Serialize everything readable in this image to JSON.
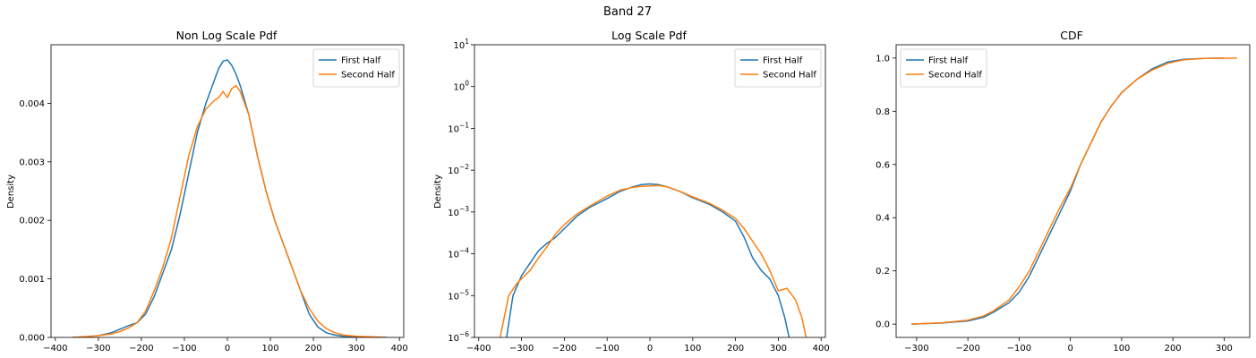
{
  "figure": {
    "suptitle": "Band 27"
  },
  "colors": {
    "first": "#1f77b4",
    "second": "#ff7f0e"
  },
  "chart_data": [
    {
      "type": "line",
      "title": "Non Log Scale Pdf",
      "xlabel": "",
      "ylabel": "Density",
      "xlim": [
        -410,
        410
      ],
      "ylim": [
        0,
        0.005
      ],
      "yscale": "linear",
      "xticks": [
        -400,
        -300,
        -200,
        -100,
        0,
        100,
        200,
        300,
        400
      ],
      "yticks": [
        0.0,
        0.001,
        0.002,
        0.003,
        0.004
      ],
      "ytick_labels": [
        "0.000",
        "0.001",
        "0.002",
        "0.003",
        "0.004"
      ],
      "legend": "top-right",
      "series": [
        {
          "name": "First Half",
          "color": "#1f77b4",
          "x": [
            -360,
            -330,
            -300,
            -270,
            -250,
            -230,
            -210,
            -190,
            -170,
            -150,
            -130,
            -110,
            -90,
            -70,
            -50,
            -30,
            -20,
            -10,
            0,
            10,
            20,
            30,
            50,
            70,
            90,
            110,
            130,
            150,
            170,
            190,
            210,
            230,
            250,
            270,
            300,
            330,
            370
          ],
          "y": [
            0.0,
            1e-05,
            3e-05,
            8e-05,
            0.00014,
            0.0002,
            0.00025,
            0.0004,
            0.0007,
            0.0011,
            0.0015,
            0.0021,
            0.0028,
            0.0035,
            0.004,
            0.0044,
            0.0046,
            0.00472,
            0.00474,
            0.00465,
            0.0045,
            0.0043,
            0.0038,
            0.0031,
            0.0025,
            0.002,
            0.0016,
            0.0012,
            0.0008,
            0.0004,
            0.00018,
            8e-05,
            4e-05,
            2e-05,
            5e-06,
            0.0,
            0.0
          ]
        },
        {
          "name": "Second Half",
          "color": "#ff7f0e",
          "x": [
            -360,
            -330,
            -300,
            -270,
            -250,
            -230,
            -210,
            -190,
            -170,
            -150,
            -130,
            -110,
            -90,
            -70,
            -50,
            -30,
            -20,
            -10,
            0,
            10,
            20,
            30,
            50,
            70,
            90,
            110,
            130,
            150,
            170,
            190,
            210,
            230,
            250,
            270,
            300,
            330,
            370
          ],
          "y": [
            0.0,
            1e-05,
            3e-05,
            6e-05,
            0.0001,
            0.00016,
            0.00025,
            0.00045,
            0.0008,
            0.0012,
            0.0017,
            0.0024,
            0.0031,
            0.0036,
            0.0039,
            0.00405,
            0.0041,
            0.0042,
            0.0041,
            0.00425,
            0.0043,
            0.0042,
            0.0038,
            0.0031,
            0.0025,
            0.002,
            0.0016,
            0.0012,
            0.0008,
            0.0005,
            0.00028,
            0.00015,
            8e-05,
            4e-05,
            2e-05,
            1e-05,
            0.0
          ]
        }
      ]
    },
    {
      "type": "line",
      "title": "Log Scale Pdf",
      "xlabel": "",
      "ylabel": "Density",
      "xlim": [
        -410,
        410
      ],
      "ylim": [
        1e-06,
        10
      ],
      "yscale": "log",
      "xticks": [
        -400,
        -300,
        -200,
        -100,
        0,
        100,
        200,
        300,
        400
      ],
      "yticks": [
        1e-06,
        1e-05,
        0.0001,
        0.001,
        0.01,
        0.1,
        1,
        10
      ],
      "ytick_labels": [
        "10|−6",
        "10|−5",
        "10|−4",
        "10|−3",
        "10|−2",
        "10|−1",
        "10|0",
        "10|1"
      ],
      "legend": "top-right",
      "series": [
        {
          "name": "First Half",
          "color": "#1f77b4",
          "x": [
            -335,
            -320,
            -300,
            -280,
            -260,
            -240,
            -220,
            -200,
            -170,
            -140,
            -100,
            -70,
            -40,
            -20,
            0,
            20,
            40,
            70,
            100,
            140,
            170,
            200,
            220,
            240,
            260,
            280,
            300,
            315,
            325
          ],
          "y": [
            1e-06,
            1e-05,
            3e-05,
            6e-05,
            0.00012,
            0.00018,
            0.00025,
            0.0004,
            0.0008,
            0.0013,
            0.0021,
            0.0031,
            0.004,
            0.0045,
            0.0047,
            0.0045,
            0.004,
            0.0031,
            0.0022,
            0.0015,
            0.001,
            0.0006,
            0.00025,
            8e-05,
            4e-05,
            2.5e-05,
            1e-05,
            3e-06,
            1e-06
          ]
        },
        {
          "name": "Second Half",
          "color": "#ff7f0e",
          "x": [
            -350,
            -330,
            -310,
            -280,
            -260,
            -240,
            -220,
            -200,
            -170,
            -140,
            -100,
            -70,
            -40,
            -20,
            0,
            20,
            40,
            70,
            100,
            140,
            170,
            200,
            220,
            240,
            260,
            280,
            300,
            320,
            340,
            355,
            365
          ],
          "y": [
            1e-06,
            1e-05,
            2e-05,
            4e-05,
            8e-05,
            0.00015,
            0.0003,
            0.0005,
            0.0009,
            0.0014,
            0.0024,
            0.0033,
            0.0039,
            0.0041,
            0.0042,
            0.0043,
            0.004,
            0.0031,
            0.0023,
            0.0016,
            0.0011,
            0.0007,
            0.0004,
            0.0002,
            0.0001,
            4e-05,
            1.3e-05,
            1.5e-05,
            8e-06,
            3e-06,
            1e-06
          ]
        }
      ]
    },
    {
      "type": "line",
      "title": "CDF",
      "xlabel": "",
      "ylabel": "",
      "xlim": [
        -340,
        350
      ],
      "ylim": [
        -0.05,
        1.05
      ],
      "yscale": "linear",
      "xticks": [
        -300,
        -200,
        -100,
        0,
        100,
        200,
        300
      ],
      "yticks": [
        0.0,
        0.2,
        0.4,
        0.6,
        0.8,
        1.0
      ],
      "ytick_labels": [
        "0.0",
        "0.2",
        "0.4",
        "0.6",
        "0.8",
        "1.0"
      ],
      "legend": "top-left",
      "series": [
        {
          "name": "First Half",
          "color": "#1f77b4",
          "x": [
            -310,
            -250,
            -200,
            -170,
            -150,
            -120,
            -100,
            -80,
            -60,
            -40,
            -20,
            0,
            20,
            40,
            60,
            80,
            100,
            130,
            160,
            190,
            220,
            260,
            300
          ],
          "y": [
            0.0,
            0.004,
            0.012,
            0.025,
            0.045,
            0.08,
            0.12,
            0.18,
            0.26,
            0.34,
            0.42,
            0.5,
            0.6,
            0.68,
            0.76,
            0.82,
            0.87,
            0.92,
            0.96,
            0.985,
            0.995,
            0.999,
            1.0
          ]
        },
        {
          "name": "Second Half",
          "color": "#ff7f0e",
          "x": [
            -310,
            -250,
            -200,
            -170,
            -150,
            -120,
            -100,
            -80,
            -60,
            -40,
            -20,
            0,
            20,
            40,
            60,
            80,
            100,
            130,
            160,
            190,
            220,
            260,
            325
          ],
          "y": [
            0.0,
            0.005,
            0.015,
            0.03,
            0.05,
            0.09,
            0.14,
            0.2,
            0.28,
            0.36,
            0.44,
            0.51,
            0.6,
            0.68,
            0.76,
            0.82,
            0.87,
            0.92,
            0.955,
            0.98,
            0.993,
            0.999,
            1.0
          ]
        }
      ]
    }
  ]
}
